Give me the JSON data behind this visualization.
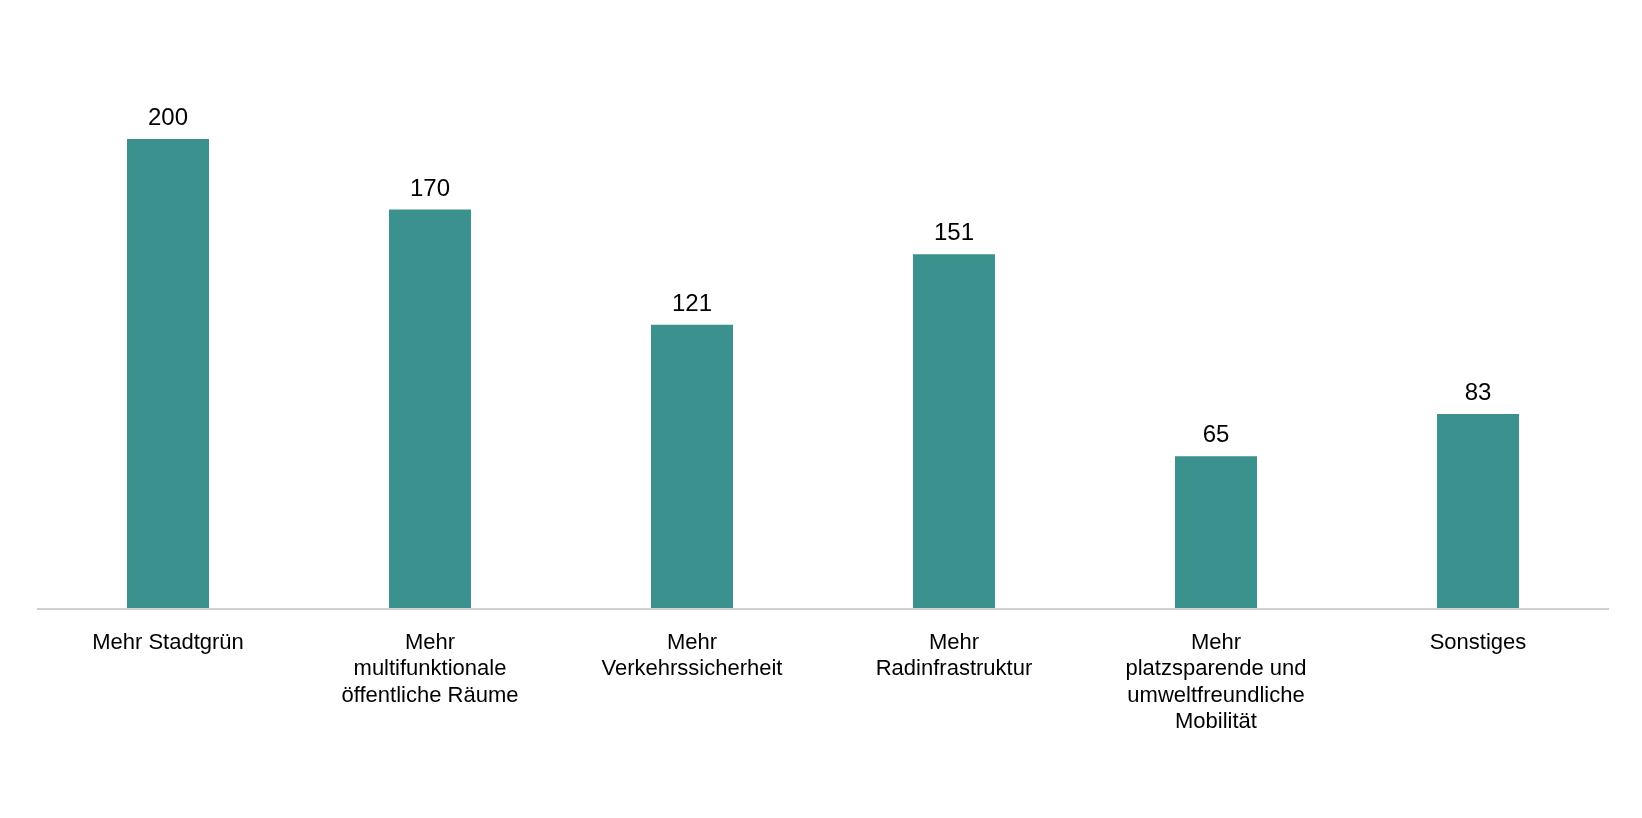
{
  "chart_data": {
    "type": "bar",
    "categories": [
      "Mehr Stadtgrün",
      "Mehr multifunktionale öffentliche Räume",
      "Mehr Verkehrssicherheit",
      "Mehr Radinfrastruktur",
      "Mehr platzsparende und umweltfreundliche Mobilität",
      "Sonstiges"
    ],
    "values": [
      200,
      170,
      121,
      151,
      65,
      83
    ],
    "color": "#3a918d",
    "data_labels": true
  }
}
